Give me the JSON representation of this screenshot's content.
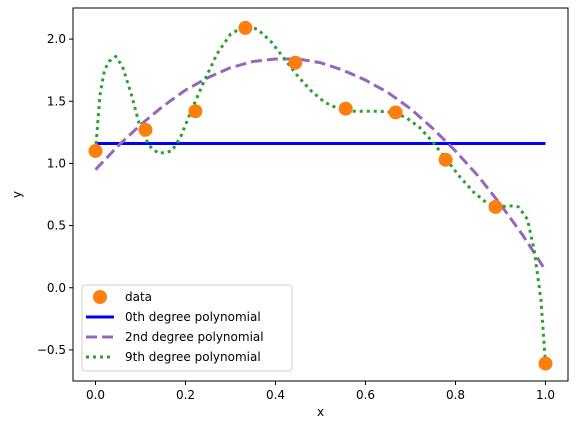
{
  "chart_data": {
    "type": "line",
    "xlabel": "x",
    "ylabel": "y",
    "xlim": [
      -0.05,
      1.05
    ],
    "ylim": [
      -0.75,
      2.25
    ],
    "xticks": [
      0.0,
      0.2,
      0.4,
      0.6,
      0.8,
      1.0
    ],
    "xtick_labels": [
      "0.0",
      "0.2",
      "0.4",
      "0.6",
      "0.8",
      "1.0"
    ],
    "yticks": [
      -0.5,
      0.0,
      0.5,
      1.0,
      1.5,
      2.0
    ],
    "ytick_labels": [
      "−0.5",
      "0.0",
      "0.5",
      "1.0",
      "1.5",
      "2.0"
    ],
    "grid": false,
    "legend_position": "lower-left",
    "scatter": {
      "name": "data",
      "color": "#ff7f0e",
      "x": [
        0.0,
        0.111,
        0.222,
        0.333,
        0.444,
        0.556,
        0.667,
        0.778,
        0.889,
        1.0
      ],
      "y": [
        1.1,
        1.27,
        1.42,
        2.09,
        1.81,
        1.44,
        1.41,
        1.03,
        0.65,
        -0.61
      ]
    },
    "series": [
      {
        "name": "0th degree polynomial",
        "color": "#0000ff",
        "style": "solid",
        "x": [
          0.0,
          1.0
        ],
        "y": [
          1.16,
          1.16
        ]
      },
      {
        "name": "2nd degree polynomial",
        "color": "#9467bd",
        "style": "dashed",
        "x": [
          0.0,
          0.05,
          0.1,
          0.15,
          0.2,
          0.25,
          0.3,
          0.35,
          0.4,
          0.45,
          0.5,
          0.55,
          0.6,
          0.65,
          0.7,
          0.75,
          0.8,
          0.85,
          0.9,
          0.95,
          1.0
        ],
        "y": [
          0.95,
          1.14,
          1.31,
          1.46,
          1.59,
          1.69,
          1.77,
          1.82,
          1.84,
          1.84,
          1.81,
          1.75,
          1.67,
          1.57,
          1.44,
          1.28,
          1.1,
          0.9,
          0.67,
          0.42,
          0.14
        ]
      },
      {
        "name": "9th degree polynomial",
        "color": "#2ca02c",
        "style": "dotted",
        "x": [
          0.0,
          0.01,
          0.02,
          0.03,
          0.045,
          0.06,
          0.08,
          0.1,
          0.12,
          0.14,
          0.17,
          0.19,
          0.21,
          0.24,
          0.27,
          0.3,
          0.33,
          0.36,
          0.39,
          0.42,
          0.45,
          0.48,
          0.51,
          0.54,
          0.57,
          0.6,
          0.63,
          0.66,
          0.69,
          0.72,
          0.75,
          0.78,
          0.81,
          0.84,
          0.87,
          0.9,
          0.92,
          0.94,
          0.96,
          0.975,
          0.99,
          1.0
        ],
        "y": [
          1.1,
          1.55,
          1.75,
          1.82,
          1.86,
          1.78,
          1.55,
          1.28,
          1.14,
          1.08,
          1.1,
          1.22,
          1.4,
          1.65,
          1.88,
          2.04,
          2.1,
          2.08,
          1.98,
          1.84,
          1.7,
          1.58,
          1.49,
          1.44,
          1.42,
          1.42,
          1.42,
          1.41,
          1.37,
          1.29,
          1.17,
          1.03,
          0.89,
          0.77,
          0.68,
          0.65,
          0.66,
          0.65,
          0.55,
          0.3,
          -0.1,
          -0.61
        ]
      }
    ]
  }
}
